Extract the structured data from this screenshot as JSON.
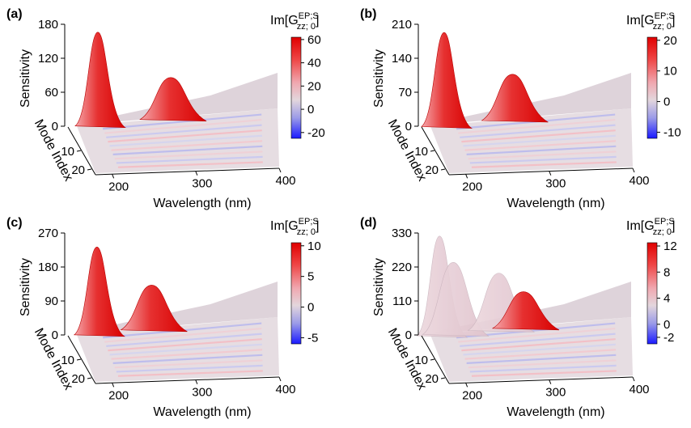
{
  "figure": {
    "colorbar_title_main": "Im[G",
    "colorbar_title_sup": "EP;S",
    "colorbar_title_sub": "zz; 0",
    "colorbar_title_close": "]"
  },
  "chart_data": [
    {
      "type": "surface3d",
      "panel_label": "(a)",
      "zlabel": "Sensitivity",
      "xlabel": "Wavelength (nm)",
      "ylabel": "Mode Index",
      "z_ticks": [
        "0",
        "60",
        "120",
        "180"
      ],
      "x_ticks": [
        "200",
        "300",
        "400"
      ],
      "y_ticks": [
        "10",
        "20"
      ],
      "zlim": [
        0,
        180
      ],
      "xlim": [
        180,
        400
      ],
      "ylim": [
        1,
        22
      ],
      "peaks": [
        {
          "wavelength": 203,
          "sensitivity": 166
        },
        {
          "wavelength": 283,
          "sensitivity": 86
        }
      ],
      "colorbar": {
        "ticks": [
          "60",
          "40",
          "20",
          "0",
          "-20"
        ],
        "range": [
          -25,
          62
        ]
      }
    },
    {
      "type": "surface3d",
      "panel_label": "(b)",
      "zlabel": "Sensitivity",
      "xlabel": "Wavelength (nm)",
      "ylabel": "Mode Index",
      "z_ticks": [
        "0",
        "70",
        "140",
        "210"
      ],
      "x_ticks": [
        "200",
        "300",
        "400"
      ],
      "y_ticks": [
        "10",
        "20"
      ],
      "zlim": [
        0,
        210
      ],
      "xlim": [
        180,
        400
      ],
      "ylim": [
        1,
        22
      ],
      "peaks": [
        {
          "wavelength": 195,
          "sensitivity": 193
        },
        {
          "wavelength": 270,
          "sensitivity": 107
        }
      ],
      "colorbar": {
        "ticks": [
          "20",
          "10",
          "0",
          "-10"
        ],
        "range": [
          -12,
          21
        ]
      }
    },
    {
      "type": "surface3d",
      "panel_label": "(c)",
      "zlabel": "Sensitivity",
      "xlabel": "Wavelength (nm)",
      "ylabel": "Mode Index",
      "z_ticks": [
        "0",
        "90",
        "180",
        "270"
      ],
      "x_ticks": [
        "200",
        "300",
        "400"
      ],
      "y_ticks": [
        "10",
        "20"
      ],
      "zlim": [
        0,
        270
      ],
      "xlim": [
        180,
        400
      ],
      "ylim": [
        1,
        22
      ],
      "peaks": [
        {
          "wavelength": 202,
          "sensitivity": 233
        },
        {
          "wavelength": 262,
          "sensitivity": 132
        }
      ],
      "colorbar": {
        "ticks": [
          "10",
          "5",
          "0",
          "-5"
        ],
        "range": [
          -6,
          10.5
        ]
      }
    },
    {
      "type": "surface3d",
      "panel_label": "(d)",
      "zlabel": "Sensitivity",
      "xlabel": "Wavelength (nm)",
      "ylabel": "Mode Index",
      "z_ticks": [
        "0",
        "110",
        "220",
        "330"
      ],
      "x_ticks": [
        "200",
        "300",
        "400"
      ],
      "y_ticks": [
        "10",
        "20"
      ],
      "zlim": [
        0,
        330
      ],
      "xlim": [
        180,
        400
      ],
      "ylim": [
        1,
        22
      ],
      "peaks": [
        {
          "wavelength": 190,
          "sensitivity": 320
        },
        {
          "wavelength": 205,
          "sensitivity": 235
        },
        {
          "wavelength": 255,
          "sensitivity": 200
        },
        {
          "wavelength": 282,
          "sensitivity": 140
        }
      ],
      "colorbar": {
        "ticks": [
          "12",
          "8",
          "4",
          "0",
          "-2"
        ],
        "range": [
          -3,
          12.5
        ]
      }
    }
  ]
}
